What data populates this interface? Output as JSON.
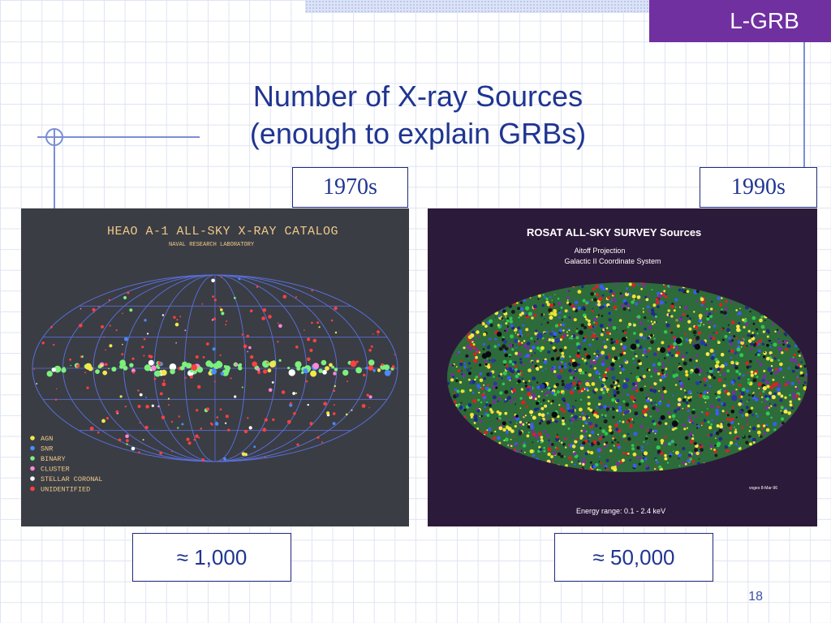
{
  "header": {
    "tag": "L-GRB"
  },
  "slide": {
    "title_line1": "Number of X-ray Sources",
    "title_line2": "(enough to explain GRBs)",
    "page_number": "18"
  },
  "left": {
    "era": "1970s",
    "count": "≈ 1,000",
    "map": {
      "title": "HEAO A-1 ALL-SKY X-RAY CATALOG",
      "subtitle": "NAVAL RESEARCH LABORATORY",
      "legend": [
        {
          "label": "AGN",
          "color": "#f2e84a"
        },
        {
          "label": "SNR",
          "color": "#4a8cff"
        },
        {
          "label": "BINARY",
          "color": "#7cf07c"
        },
        {
          "label": "CLUSTER",
          "color": "#ff88d8"
        },
        {
          "label": "STELLAR CORONAL",
          "color": "#ffffff"
        },
        {
          "label": "UNIDENTIFIED",
          "color": "#ff4040"
        }
      ]
    }
  },
  "right": {
    "era": "1990s",
    "count": "≈ 50,000",
    "map": {
      "title": "ROSAT ALL-SKY SURVEY Sources",
      "subtitle1": "Aitoff Projection",
      "subtitle2": "Galactic II Coordinate System",
      "credit": "voges 8-Mar-96",
      "energy": "Energy range:  0.1 - 2.4 keV"
    }
  }
}
